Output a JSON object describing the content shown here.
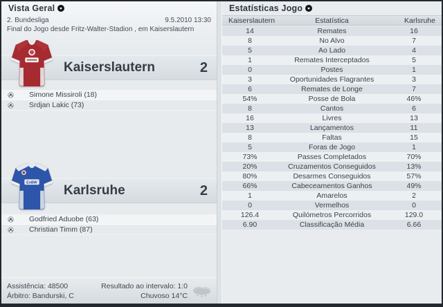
{
  "left_panel": {
    "title": "Vista Geral",
    "competition": "2. Bundesliga",
    "datetime": "9.5.2010 13:30",
    "match_description": "Final do Jogo desde Fritz-Walter-Stadion , em Kaiserslautern",
    "home": {
      "name": "Kaiserslautern",
      "score": "2",
      "shirt_color": "#a62b30",
      "scorers": [
        "Simone Missiroli (18)",
        "Srdjan Lakic (73)"
      ]
    },
    "away": {
      "name": "Karlsruhe",
      "score": "2",
      "shirt_color": "#2d55a9",
      "shirt_sponsor": "EnBW",
      "scorers": [
        "Godfried Aduobe (63)",
        "Christian Timm (87)"
      ]
    },
    "footer": {
      "attendance": "Assistência: 48500",
      "referee": "Árbitro: Bandurski, C",
      "half_time": "Resultado ao intervalo: 1:0",
      "weather": "Chuvoso 14°C",
      "weather_icon": "cloud-icon"
    }
  },
  "right_panel": {
    "title": "Estatísticas Jogo",
    "table": {
      "headers": [
        "Kaiserslautern",
        "Estatística",
        "Karlsruhe"
      ],
      "rows": [
        [
          "14",
          "Remates",
          "16"
        ],
        [
          "8",
          "No Alvo",
          "7"
        ],
        [
          "5",
          "Ao Lado",
          "4"
        ],
        [
          "1",
          "Remates Interceptados",
          "5"
        ],
        [
          "0",
          "Postes",
          "1"
        ],
        [
          "3",
          "Oportunidades Flagrantes",
          "3"
        ],
        [
          "6",
          "Remates de Longe",
          "7"
        ],
        [
          "54%",
          "Posse de Bola",
          "46%"
        ],
        [
          "8",
          "Cantos",
          "6"
        ],
        [
          "16",
          "Livres",
          "13"
        ],
        [
          "13",
          "Lançamentos",
          "11"
        ],
        [
          "8",
          "Faltas",
          "15"
        ],
        [
          "5",
          "Foras de Jogo",
          "1"
        ],
        [
          "73%",
          "Passes Completados",
          "70%"
        ],
        [
          "20%",
          "Cruzamentos Conseguidos",
          "13%"
        ],
        [
          "80%",
          "Desarmes Conseguidos",
          "57%"
        ],
        [
          "66%",
          "Cabeceamentos Ganhos",
          "49%"
        ],
        [
          "1",
          "Amarelos",
          "2"
        ],
        [
          "0",
          "Vermelhos",
          "0"
        ],
        [
          "126.4",
          "Quilómetros Percorridos",
          "129.0"
        ],
        [
          "6.90",
          "Classificação Média",
          "6.66"
        ]
      ]
    }
  },
  "colors": {
    "row_odd": "#dbe1e6",
    "row_even": "#edf0f3",
    "dark_text": "#3b424a",
    "home_shirt": "#a62b30",
    "away_shirt": "#2d55a9"
  }
}
